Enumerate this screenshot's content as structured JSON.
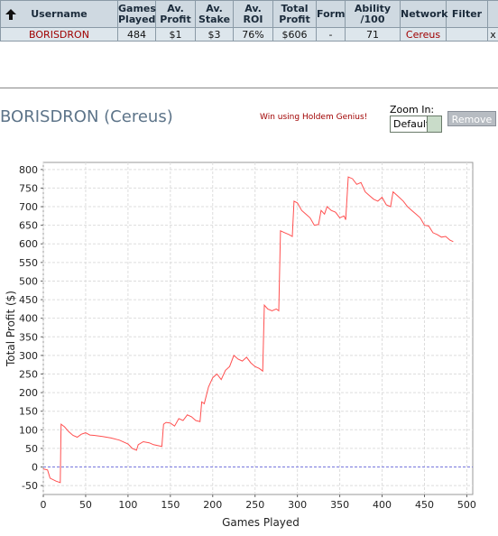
{
  "table": {
    "columns": [
      "Username",
      "Games Played",
      "Av. Profit",
      "Av. Stake",
      "Av. ROI",
      "Total Profit",
      "Form",
      "Ability /100",
      "Network",
      "Filter"
    ],
    "rows": [
      [
        "BORISDRON",
        "484",
        "$1",
        "$3",
        "76%",
        "$606",
        "-",
        "71",
        "Cereus"
      ]
    ],
    "remove_mark": "x"
  },
  "title": "BORISDRON (Cereus)",
  "promo": "Win using Holdem Genius!",
  "zoom": {
    "label": "Zoom In:",
    "value": "Default"
  },
  "button": "Remove",
  "chart_data": {
    "type": "line",
    "xlabel": "Games Played",
    "ylabel": "Total Profit ($)",
    "color": "#ff5050",
    "x": [
      0,
      5,
      8,
      15,
      20,
      21,
      25,
      30,
      35,
      40,
      45,
      50,
      55,
      60,
      70,
      80,
      90,
      100,
      105,
      110,
      112,
      118,
      125,
      130,
      140,
      142,
      145,
      150,
      155,
      160,
      165,
      170,
      175,
      180,
      185,
      187,
      190,
      195,
      200,
      205,
      210,
      215,
      220,
      225,
      230,
      235,
      240,
      245,
      250,
      255,
      259,
      261,
      265,
      270,
      275,
      278,
      280,
      285,
      290,
      294,
      296,
      300,
      305,
      310,
      315,
      320,
      325,
      328,
      332,
      335,
      340,
      345,
      350,
      355,
      357,
      360,
      365,
      370,
      375,
      380,
      385,
      390,
      395,
      400,
      405,
      410,
      413,
      418,
      425,
      430,
      435,
      440,
      445,
      450,
      455,
      460,
      465,
      470,
      475,
      480,
      484
    ],
    "values": [
      -5,
      -8,
      -30,
      -38,
      -42,
      115,
      108,
      95,
      85,
      80,
      88,
      92,
      86,
      85,
      82,
      78,
      72,
      62,
      50,
      45,
      60,
      68,
      65,
      60,
      55,
      115,
      120,
      118,
      110,
      130,
      125,
      140,
      135,
      125,
      122,
      175,
      170,
      215,
      240,
      250,
      235,
      260,
      270,
      300,
      290,
      285,
      295,
      280,
      270,
      265,
      258,
      435,
      425,
      420,
      425,
      420,
      635,
      630,
      625,
      620,
      715,
      710,
      690,
      680,
      670,
      650,
      652,
      690,
      680,
      700,
      690,
      685,
      670,
      675,
      665,
      780,
      775,
      760,
      765,
      740,
      730,
      720,
      715,
      725,
      705,
      700,
      740,
      730,
      715,
      700,
      690,
      680,
      670,
      650,
      648,
      630,
      625,
      618,
      620,
      610,
      606
    ],
    "xlim": [
      0,
      507
    ],
    "ylim": [
      -74,
      819
    ],
    "xticks": [
      0,
      50,
      100,
      150,
      200,
      250,
      300,
      350,
      400,
      450,
      500
    ],
    "yticks": [
      -50,
      0,
      50,
      100,
      150,
      200,
      250,
      300,
      350,
      400,
      450,
      500,
      550,
      600,
      650,
      700,
      750,
      800
    ],
    "grid": true,
    "reference_line": 0,
    "reference_color": "#7777dd"
  }
}
